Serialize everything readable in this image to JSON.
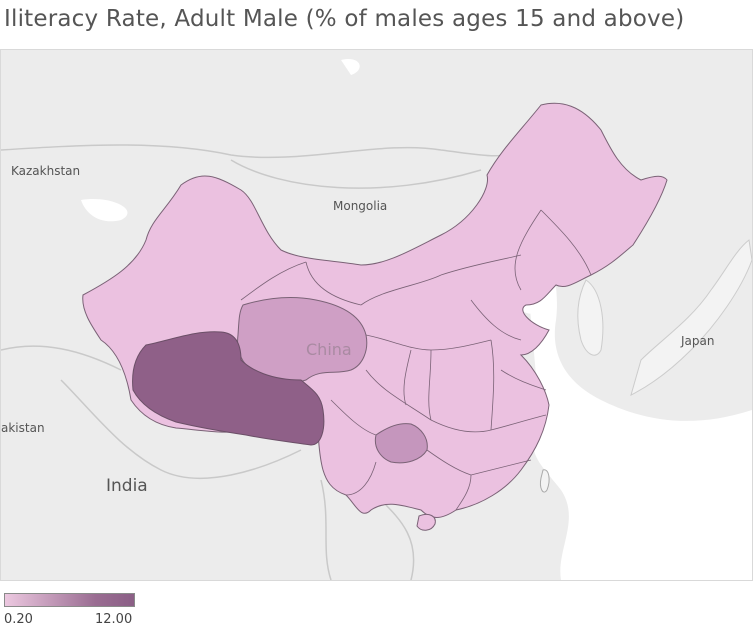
{
  "title": "Iliteracy Rate, Adult Male (% of males ages 15 and above)",
  "map": {
    "country_labels": {
      "kazakhstan": "Kazakhstan",
      "mongolia": "Mongolia",
      "china": "China",
      "japan": "Japan",
      "india": "India",
      "pakistan_partial": "akistan"
    },
    "colors": {
      "background": "#e9e9e9",
      "land": "#f3f3f3",
      "water": "#ffffff",
      "low": "#ebc1e0",
      "mid": "#cf9fc5",
      "mid_dark": "#c596bd",
      "high": "#8f6088",
      "border": "#7a6276"
    },
    "highlighted_regions": [
      {
        "name": "Tibet",
        "level": "high"
      },
      {
        "name": "Qinghai",
        "level": "mid"
      },
      {
        "name": "Guizhou",
        "level": "mid_dark"
      }
    ]
  },
  "legend": {
    "min_label": "0.20",
    "max_label": "12.00"
  }
}
